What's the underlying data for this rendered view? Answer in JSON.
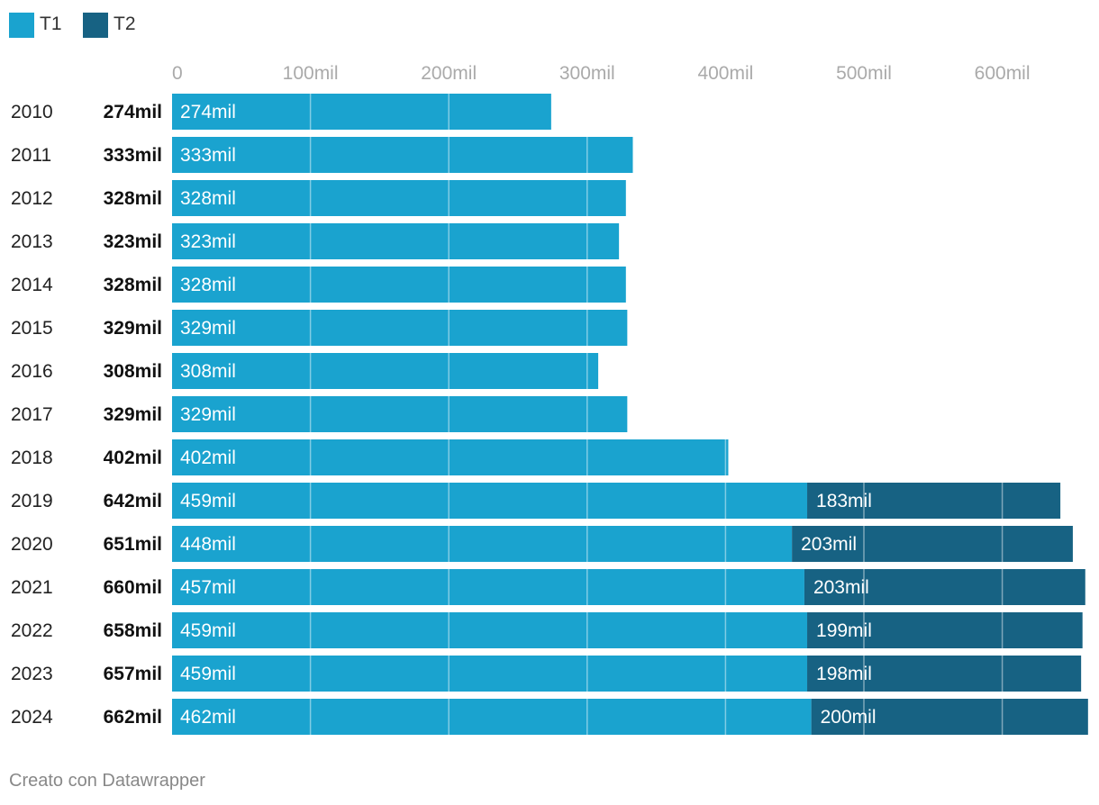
{
  "legend": {
    "t1_label": "T1",
    "t2_label": "T2"
  },
  "colors": {
    "t1": "#1aa3cf",
    "t2": "#176283",
    "grid": "rgba(255,255,255,0.45)",
    "tick_text": "#aaaaaa",
    "year_text": "#222222",
    "total_text": "#111111",
    "bar_label": "#ffffff"
  },
  "chart_data": {
    "type": "bar",
    "orientation": "horizontal",
    "stacked": true,
    "categories": [
      "2010",
      "2011",
      "2012",
      "2013",
      "2014",
      "2015",
      "2016",
      "2017",
      "2018",
      "2019",
      "2020",
      "2021",
      "2022",
      "2023",
      "2024"
    ],
    "series": [
      {
        "name": "T1",
        "values": [
          274,
          333,
          328,
          323,
          328,
          329,
          308,
          329,
          402,
          459,
          448,
          457,
          459,
          459,
          462
        ]
      },
      {
        "name": "T2",
        "values": [
          0,
          0,
          0,
          0,
          0,
          0,
          0,
          0,
          0,
          183,
          203,
          203,
          199,
          198,
          200
        ]
      }
    ],
    "totals": [
      274,
      333,
      328,
      323,
      328,
      329,
      308,
      329,
      402,
      642,
      651,
      660,
      658,
      657,
      662
    ],
    "total_labels": [
      "274mil",
      "333mil",
      "328mil",
      "323mil",
      "328mil",
      "329mil",
      "308mil",
      "329mil",
      "402mil",
      "642mil",
      "651mil",
      "660mil",
      "658mil",
      "657mil",
      "662mil"
    ],
    "t1_labels": [
      "274mil",
      "333mil",
      "328mil",
      "323mil",
      "328mil",
      "329mil",
      "308mil",
      "329mil",
      "402mil",
      "459mil",
      "448mil",
      "457mil",
      "459mil",
      "459mil",
      "462mil"
    ],
    "t2_labels": [
      "",
      "",
      "",
      "",
      "",
      "",
      "",
      "",
      "",
      "183mil",
      "203mil",
      "203mil",
      "199mil",
      "198mil",
      "200mil"
    ],
    "x_ticks": [
      0,
      100,
      200,
      300,
      400,
      500,
      600
    ],
    "x_tick_labels": [
      "0",
      "100mil",
      "200mil",
      "300mil",
      "400mil",
      "500mil",
      "600mil"
    ],
    "xlim": [
      0,
      662
    ],
    "unit": "mil",
    "legend_position": "top-left",
    "grid": true
  },
  "footer": {
    "credit": "Creato con Datawrapper"
  }
}
